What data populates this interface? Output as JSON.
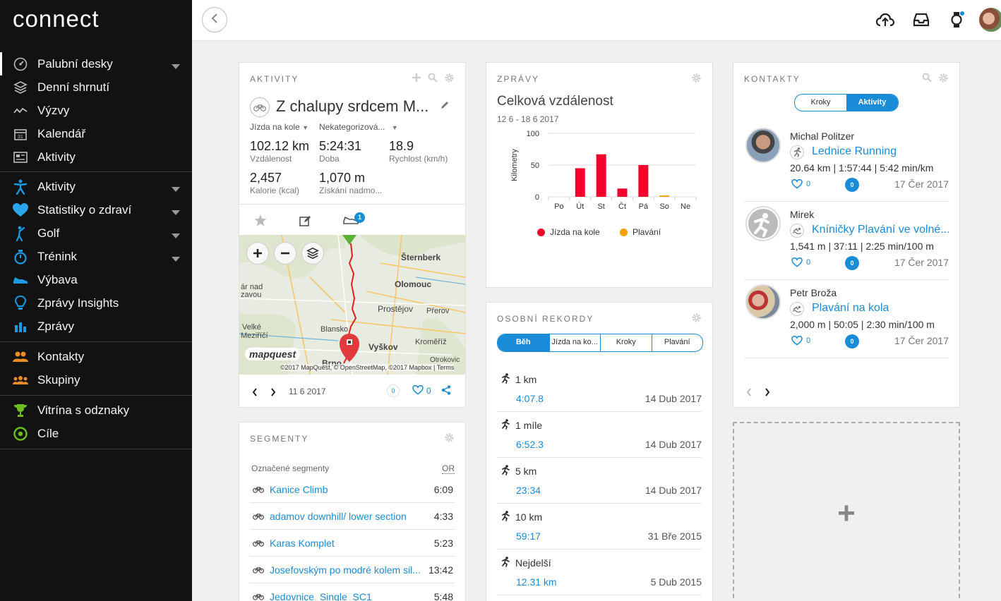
{
  "app": {
    "logo": "connect"
  },
  "sidebar": {
    "groups": [
      {
        "items": [
          {
            "label": "Palubní desky",
            "icon": "gauge-icon",
            "chevron": true
          },
          {
            "label": "Denní shrnutí",
            "icon": "layers-icon",
            "chevron": false
          },
          {
            "label": "Výzvy",
            "icon": "wave-icon",
            "chevron": false
          },
          {
            "label": "Kalendář",
            "icon": "calendar-icon",
            "chevron": false
          },
          {
            "label": "Aktivity",
            "icon": "list-icon",
            "chevron": false
          }
        ]
      },
      {
        "items": [
          {
            "label": "Aktivity",
            "icon": "running-person-icon",
            "chevron": true
          },
          {
            "label": "Statistiky o zdraví",
            "icon": "heart-icon",
            "chevron": true
          },
          {
            "label": "Golf",
            "icon": "golfer-icon",
            "chevron": true
          },
          {
            "label": "Trénink",
            "icon": "stopwatch-icon",
            "chevron": true
          },
          {
            "label": "Výbava",
            "icon": "shoe-icon",
            "chevron": false
          },
          {
            "label": "Zprávy Insights",
            "icon": "lightbulb-icon",
            "chevron": false
          },
          {
            "label": "Zprávy",
            "icon": "bar-chart-icon",
            "chevron": false
          }
        ]
      },
      {
        "items": [
          {
            "label": "Kontakty",
            "icon": "contacts-icon",
            "chevron": false
          },
          {
            "label": "Skupiny",
            "icon": "groups-icon",
            "chevron": false
          }
        ]
      },
      {
        "items": [
          {
            "label": "Vitrína s odznaky",
            "icon": "trophy-icon",
            "chevron": false
          },
          {
            "label": "Cíle",
            "icon": "target-icon",
            "chevron": false
          }
        ]
      }
    ]
  },
  "activity": {
    "title": "AKTIVITY",
    "name": "Z chalupy srdcem M...",
    "type": "Jízda na kole",
    "category": "Nekategorizová...",
    "stats": [
      {
        "value": "102.12 km",
        "label": "Vzdálenost"
      },
      {
        "value": "5:24:31",
        "label": "Doba"
      },
      {
        "value": "18.9",
        "label": "Rychlost (km/h)"
      },
      {
        "value": "2,457",
        "label": "Kalorie (kcal)"
      },
      {
        "value": "1,070 m",
        "label": "Získání nadmo..."
      }
    ],
    "badge": "1",
    "map": {
      "places": [
        "Šternberk",
        "Olomouc",
        "ár nad",
        "zavou",
        "Prostějov",
        "Přerov",
        "Velké",
        "Meziříčí",
        "Blansko",
        "Vyškov",
        "Kroměříž",
        "Brno",
        "Otrokovic"
      ],
      "attribution": "©2017 MapQuest, © OpenStreetMap, ©2017 Mapbox | Terms",
      "brand": "mapquest"
    },
    "date": "11 6 2017",
    "comments": "0",
    "likes": "0"
  },
  "segments": {
    "title": "SEGMENTY",
    "header": "Označené segmenty",
    "header_right": "OR",
    "items": [
      {
        "name": "Kanice Climb",
        "time": "6:09"
      },
      {
        "name": "adamov downhill/ lower section",
        "time": "4:33"
      },
      {
        "name": "Karas Komplet",
        "time": "5:23"
      },
      {
        "name": "Josefovským po modré kolem sil...",
        "time": "13:42"
      },
      {
        "name": "Jedovnice_Single_SC1",
        "time": "5:48"
      }
    ]
  },
  "reports": {
    "title": "ZPRÁVY",
    "heading": "Celková vzdálenost",
    "range": "12 6 - 18 6 2017",
    "legend": [
      {
        "name": "Jízda na kole",
        "color": "#f5002d"
      },
      {
        "name": "Plavání",
        "color": "#f5a000"
      }
    ]
  },
  "chart_data": {
    "type": "bar",
    "categories": [
      "Po",
      "Út",
      "St",
      "Čt",
      "Pá",
      "So",
      "Ne"
    ],
    "series": [
      {
        "name": "Jízda na kole",
        "values": [
          0,
          45,
          67,
          13,
          50,
          0,
          0
        ]
      },
      {
        "name": "Plavání",
        "values": [
          0,
          0,
          0,
          0,
          0,
          2,
          0
        ]
      }
    ],
    "ylabel": "Kilometry",
    "yticks": [
      "100",
      "50",
      "0"
    ],
    "ylim": [
      0,
      100
    ],
    "legend": "bottom",
    "grid": true
  },
  "records": {
    "title": "OSOBNÍ REKORDY",
    "tabs": [
      "Běh",
      "Jízda na ko...",
      "Kroky",
      "Plavání"
    ],
    "items": [
      {
        "label": "1 km",
        "value": "4:07.8",
        "date": "14 Dub 2017"
      },
      {
        "label": "1 míle",
        "value": "6:52.3",
        "date": "14 Dub 2017"
      },
      {
        "label": "5 km",
        "value": "23:34",
        "date": "14 Dub 2017"
      },
      {
        "label": "10 km",
        "value": "59:17",
        "date": "31 Bře 2015"
      },
      {
        "label": "Nejdelší",
        "value": "12.31 km",
        "date": "5 Dub 2015"
      }
    ]
  },
  "contacts": {
    "title": "KONTAKTY",
    "tabs": [
      "Kroky",
      "Aktivity"
    ],
    "items": [
      {
        "name": "Michal Politzer",
        "activity": "Lednice Running",
        "stats": "20.64 km | 1:57:44 | 5:42 min/km",
        "likes": "0",
        "comments": "0",
        "date": "17 Čer 2017",
        "activity_icon": "running-icon"
      },
      {
        "name": "Mirek",
        "activity": "Kníničky Plavání ve volné...",
        "stats": "1,541 m | 37:11 | 2:25 min/100 m",
        "likes": "0",
        "comments": "0",
        "date": "17 Čer 2017",
        "activity_icon": "swimming-icon"
      },
      {
        "name": "Petr Broža",
        "activity": "Plavání na kola",
        "stats": "2,000 m | 50:05 | 2:30 min/100 m",
        "likes": "0",
        "comments": "0",
        "date": "17 Čer 2017",
        "activity_icon": "swimming-icon"
      }
    ]
  },
  "add_widget": {
    "label": "+"
  }
}
